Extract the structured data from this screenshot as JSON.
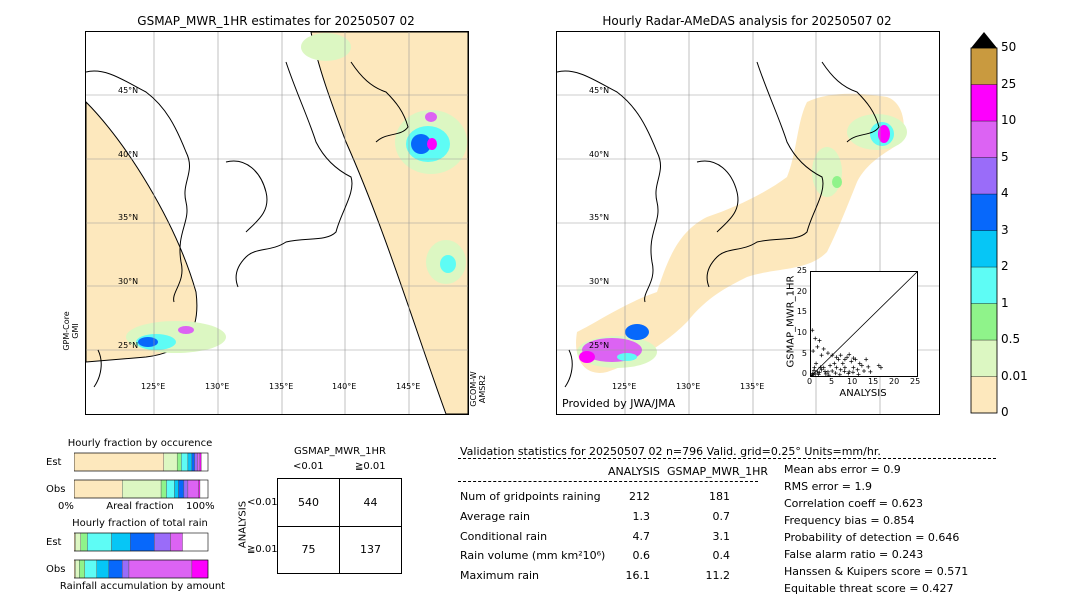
{
  "left_map": {
    "title": "GSMAP_MWR_1HR estimates for 20250507 02",
    "lat_labels": [
      "45°N",
      "40°N",
      "35°N",
      "30°N",
      "25°N"
    ],
    "lon_labels": [
      "125°E",
      "130°E",
      "135°E",
      "140°E",
      "145°E"
    ],
    "left_side_label": "GPM-Core GMI",
    "right_side_label": "GCOM-W AMSR2"
  },
  "right_map": {
    "title": "Hourly Radar-AMeDAS analysis for 20250507 02",
    "lat_labels": [
      "45°N",
      "40°N",
      "35°N",
      "30°N",
      "25°N"
    ],
    "lon_labels": [
      "125°E",
      "130°E",
      "135°E"
    ],
    "credit": "Provided by JWA/JMA"
  },
  "colorbar": {
    "levels": [
      "0",
      "0.01",
      "0.5",
      "1",
      "2",
      "3",
      "4",
      "5",
      "10",
      "25",
      "50"
    ],
    "colors": [
      "#fde8bd",
      "#dcf7c2",
      "#8ff38a",
      "#5efcf5",
      "#06c6f6",
      "#0768fb",
      "#9a6cf9",
      "#dc63f3",
      "#fd00fd",
      "#c99a3f"
    ]
  },
  "chart_data": [
    {
      "type": "scatter",
      "title": "",
      "xlabel": "ANALYSIS",
      "ylabel": "GSMAP_MWR_1HR",
      "xlim": [
        0,
        25
      ],
      "ylim": [
        0,
        25
      ],
      "xticks": [
        "0",
        "5",
        "10",
        "15",
        "20",
        "25"
      ],
      "yticks": [
        "0",
        "5",
        "10",
        "15",
        "20",
        "25"
      ],
      "points": [
        [
          0.5,
          0.3
        ],
        [
          1,
          0.5
        ],
        [
          1.5,
          1
        ],
        [
          2,
          0.8
        ],
        [
          0.8,
          2
        ],
        [
          1.2,
          3
        ],
        [
          2.5,
          1.5
        ],
        [
          3,
          2
        ],
        [
          3.5,
          0.5
        ],
        [
          4,
          1
        ],
        [
          4.5,
          2.5
        ],
        [
          5,
          1.2
        ],
        [
          5.5,
          3
        ],
        [
          6,
          2
        ],
        [
          6.5,
          4
        ],
        [
          7,
          1.5
        ],
        [
          7.5,
          3
        ],
        [
          8,
          2
        ],
        [
          8.5,
          4.5
        ],
        [
          9,
          1
        ],
        [
          9.5,
          3.5
        ],
        [
          10,
          2
        ],
        [
          10.5,
          4
        ],
        [
          11,
          1.5
        ],
        [
          11.5,
          3
        ],
        [
          12,
          2.5
        ],
        [
          13,
          4
        ],
        [
          14,
          1
        ],
        [
          16,
          2.5
        ],
        [
          16.5,
          2
        ],
        [
          0.3,
          11
        ],
        [
          1,
          9
        ],
        [
          1.5,
          7
        ],
        [
          2,
          8.5
        ],
        [
          0.5,
          6
        ],
        [
          2.5,
          5
        ],
        [
          3,
          6.5
        ],
        [
          4,
          5.5
        ],
        [
          5,
          5
        ],
        [
          6,
          4.5
        ],
        [
          7,
          5
        ],
        [
          8,
          4
        ],
        [
          9,
          5.2
        ],
        [
          10,
          4.3
        ],
        [
          0.2,
          0.1
        ],
        [
          0.4,
          0.6
        ],
        [
          0.7,
          1.3
        ],
        [
          1.8,
          0.4
        ],
        [
          2.2,
          2.1
        ],
        [
          3.3,
          1.1
        ],
        [
          4.2,
          0.2
        ],
        [
          5.8,
          0.7
        ],
        [
          6.8,
          0.3
        ],
        [
          7.9,
          1.1
        ],
        [
          8.8,
          0.6
        ],
        [
          9.9,
          0.9
        ],
        [
          11.2,
          0.4
        ],
        [
          12.5,
          1.2
        ],
        [
          13.5,
          2.2
        ]
      ]
    },
    {
      "type": "bar",
      "title": "Hourly fraction by occurence",
      "xlabel": "Areal fraction",
      "x_left_label": "0%",
      "x_right_label": "100%",
      "rows": [
        {
          "name": "Est",
          "segments": [
            0.67,
            0.1,
            0.03,
            0.05,
            0.03,
            0.02,
            0.02,
            0.02,
            0.01
          ]
        },
        {
          "name": "Obs",
          "segments": [
            0.36,
            0.29,
            0.04,
            0.06,
            0.03,
            0.04,
            0.03,
            0.08,
            0.01
          ]
        }
      ]
    },
    {
      "type": "bar",
      "title": "Hourly fraction of total rain",
      "xlabel": "Rainfall accumulation by amount",
      "rows": [
        {
          "name": "Est",
          "segments": [
            0.01,
            0.04,
            0.05,
            0.18,
            0.14,
            0.18,
            0.12,
            0.09,
            0.0
          ]
        },
        {
          "name": "Obs",
          "segments": [
            0.01,
            0.03,
            0.04,
            0.09,
            0.09,
            0.1,
            0.05,
            0.47,
            0.12
          ]
        }
      ]
    },
    {
      "type": "table",
      "title": "GSMAP_MWR_1HR",
      "col_headers": [
        "<0.01",
        "≧0.01"
      ],
      "row_axis_label": "ANALYSIS",
      "row_headers": [
        "<0.01",
        "≧0.01"
      ],
      "cells": [
        [
          "540",
          "44"
        ],
        [
          "75",
          "137"
        ]
      ]
    },
    {
      "type": "table",
      "title": "Validation statistics for 20250507 02  n=796 Valid. grid=0.25° Units=mm/hr.",
      "col_headers": [
        "ANALYSIS",
        "GSMAP_MWR_1HR"
      ],
      "rows": [
        {
          "label": "Num of gridpoints raining",
          "a": "212",
          "b": "181"
        },
        {
          "label": "Average rain",
          "a": "1.3",
          "b": "0.7"
        },
        {
          "label": "Conditional rain",
          "a": "4.7",
          "b": "3.1"
        },
        {
          "label": "Rain volume (mm km²10⁶)",
          "a": "0.6",
          "b": "0.4"
        },
        {
          "label": "Maximum rain",
          "a": "16.1",
          "b": "11.2"
        }
      ],
      "scores": [
        "Mean abs error =    0.9",
        "RMS error =    1.9",
        "Correlation coeff =  0.623",
        "Frequency bias =  0.854",
        "Probability of detection =  0.646",
        "False alarm ratio =  0.243",
        "Hanssen & Kuipers score =  0.571",
        "Equitable threat score =  0.427"
      ]
    }
  ]
}
